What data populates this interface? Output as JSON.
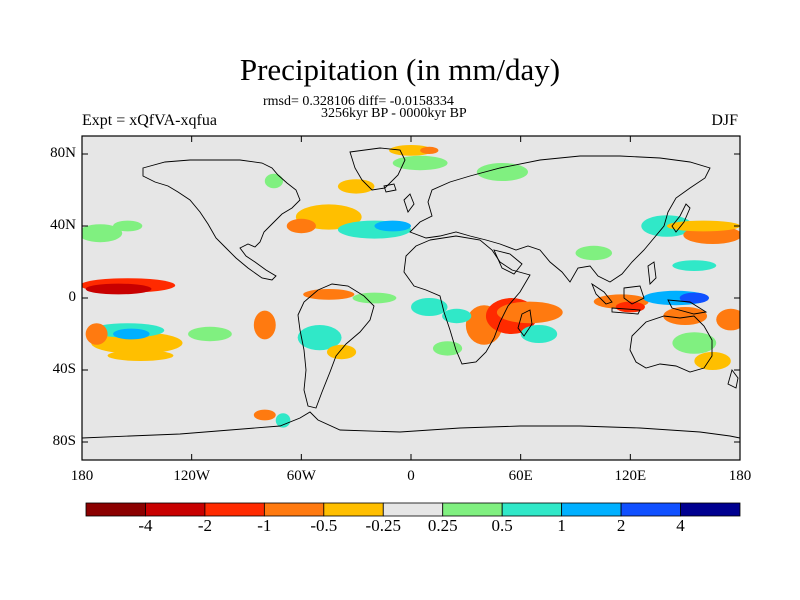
{
  "chart_data": {
    "type": "heatmap",
    "title": "Precipitation (in mm/day)",
    "stats": "rmsd= 0.328106 diff= -0.0158334",
    "period": "3256kyr BP - 0000kyr BP",
    "experiment": "Expt = xQfVA-xqfua",
    "season": "DJF",
    "lat_ticks": [
      {
        "value": 80,
        "label": "80N"
      },
      {
        "value": 40,
        "label": "40N"
      },
      {
        "value": 0,
        "label": "0"
      },
      {
        "value": -40,
        "label": "40S"
      },
      {
        "value": -80,
        "label": "80S"
      }
    ],
    "lon_ticks": [
      {
        "value": -180,
        "label": "180"
      },
      {
        "value": -120,
        "label": "120W"
      },
      {
        "value": -60,
        "label": "60W"
      },
      {
        "value": 0,
        "label": "0"
      },
      {
        "value": 60,
        "label": "60E"
      },
      {
        "value": 120,
        "label": "120E"
      },
      {
        "value": 180,
        "label": "180"
      }
    ],
    "xlim": [
      -180,
      180
    ],
    "ylim": [
      -90,
      90
    ],
    "colorbar": {
      "colors": [
        "#8b0000",
        "#c80000",
        "#ff2a00",
        "#ff7a10",
        "#ffbf00",
        "#e6e6e6",
        "#80f080",
        "#30e8c8",
        "#00b0ff",
        "#1050ff",
        "#000090"
      ],
      "labels": [
        "-4",
        "-2",
        "-1",
        "-0.5",
        "-0.25",
        "0.25",
        "0.5",
        "1",
        "2",
        "4"
      ]
    },
    "anomalies": [
      {
        "lon": -155,
        "lat": 7,
        "rx": 26,
        "ry": 4,
        "value": -1.5
      },
      {
        "lon": -160,
        "lat": 5,
        "rx": 18,
        "ry": 3,
        "value": -3
      },
      {
        "lon": -150,
        "lat": -25,
        "rx": 25,
        "ry": 6,
        "value": -0.4
      },
      {
        "lon": -155,
        "lat": -18,
        "rx": 20,
        "ry": 4,
        "value": 0.6
      },
      {
        "lon": -153,
        "lat": -20,
        "rx": 10,
        "ry": 3,
        "value": 1.5
      },
      {
        "lon": -172,
        "lat": -20,
        "rx": 6,
        "ry": 6,
        "value": -0.6
      },
      {
        "lon": -148,
        "lat": -32,
        "rx": 18,
        "ry": 3,
        "value": -0.3
      },
      {
        "lon": -110,
        "lat": -20,
        "rx": 12,
        "ry": 4,
        "value": 0.4
      },
      {
        "lon": -80,
        "lat": -15,
        "rx": 6,
        "ry": 8,
        "value": -0.6
      },
      {
        "lon": -50,
        "lat": -22,
        "rx": 12,
        "ry": 7,
        "value": 0.5
      },
      {
        "lon": -38,
        "lat": -30,
        "rx": 8,
        "ry": 4,
        "value": -0.4
      },
      {
        "lon": -45,
        "lat": 2,
        "rx": 14,
        "ry": 3,
        "value": -0.6
      },
      {
        "lon": -20,
        "lat": 0,
        "rx": 12,
        "ry": 3,
        "value": 0.3
      },
      {
        "lon": -45,
        "lat": 45,
        "rx": 18,
        "ry": 7,
        "value": -0.4
      },
      {
        "lon": -60,
        "lat": 40,
        "rx": 8,
        "ry": 4,
        "value": -0.8
      },
      {
        "lon": -20,
        "lat": 38,
        "rx": 20,
        "ry": 5,
        "value": 0.5
      },
      {
        "lon": -10,
        "lat": 40,
        "rx": 10,
        "ry": 3,
        "value": 1.2
      },
      {
        "lon": -30,
        "lat": 62,
        "rx": 10,
        "ry": 4,
        "value": -0.4
      },
      {
        "lon": 0,
        "lat": 82,
        "rx": 12,
        "ry": 3,
        "value": -0.5
      },
      {
        "lon": 5,
        "lat": 75,
        "rx": 15,
        "ry": 4,
        "value": 0.4
      },
      {
        "lon": 10,
        "lat": 82,
        "rx": 5,
        "ry": 2,
        "value": -0.8
      },
      {
        "lon": -170,
        "lat": 36,
        "rx": 12,
        "ry": 5,
        "value": 0.4
      },
      {
        "lon": -155,
        "lat": 40,
        "rx": 8,
        "ry": 3,
        "value": 0.3
      },
      {
        "lon": 50,
        "lat": 70,
        "rx": 14,
        "ry": 5,
        "value": 0.4
      },
      {
        "lon": -75,
        "lat": 65,
        "rx": 5,
        "ry": 4,
        "value": 0.4
      },
      {
        "lon": 40,
        "lat": -15,
        "rx": 10,
        "ry": 11,
        "value": -1
      },
      {
        "lon": 55,
        "lat": -10,
        "rx": 14,
        "ry": 10,
        "value": -1.6
      },
      {
        "lon": 65,
        "lat": -8,
        "rx": 18,
        "ry": 6,
        "value": -0.7
      },
      {
        "lon": 70,
        "lat": -20,
        "rx": 10,
        "ry": 5,
        "value": 0.5
      },
      {
        "lon": 25,
        "lat": -10,
        "rx": 8,
        "ry": 4,
        "value": 0.6
      },
      {
        "lon": 20,
        "lat": -28,
        "rx": 8,
        "ry": 4,
        "value": 0.4
      },
      {
        "lon": 10,
        "lat": -5,
        "rx": 10,
        "ry": 5,
        "value": 0.5
      },
      {
        "lon": 115,
        "lat": -2,
        "rx": 15,
        "ry": 4,
        "value": -0.6
      },
      {
        "lon": 120,
        "lat": -5,
        "rx": 8,
        "ry": 3,
        "value": -1.4
      },
      {
        "lon": 145,
        "lat": 0,
        "rx": 18,
        "ry": 4,
        "value": 1
      },
      {
        "lon": 155,
        "lat": 0,
        "rx": 8,
        "ry": 3,
        "value": 2.5
      },
      {
        "lon": 150,
        "lat": -10,
        "rx": 12,
        "ry": 5,
        "value": -0.6
      },
      {
        "lon": 175,
        "lat": -12,
        "rx": 8,
        "ry": 6,
        "value": -0.8
      },
      {
        "lon": 155,
        "lat": -25,
        "rx": 12,
        "ry": 6,
        "value": 0.4
      },
      {
        "lon": 165,
        "lat": -35,
        "rx": 10,
        "ry": 5,
        "value": -0.4
      },
      {
        "lon": 140,
        "lat": 40,
        "rx": 14,
        "ry": 6,
        "value": 0.5
      },
      {
        "lon": 165,
        "lat": 35,
        "rx": 16,
        "ry": 5,
        "value": -0.6
      },
      {
        "lon": 160,
        "lat": 40,
        "rx": 20,
        "ry": 3,
        "value": -0.3
      },
      {
        "lon": 155,
        "lat": 18,
        "rx": 12,
        "ry": 3,
        "value": 0.5
      },
      {
        "lon": -80,
        "lat": -65,
        "rx": 6,
        "ry": 3,
        "value": -0.6
      },
      {
        "lon": -70,
        "lat": -68,
        "rx": 4,
        "ry": 4,
        "value": 0.6
      },
      {
        "lon": 100,
        "lat": 25,
        "rx": 10,
        "ry": 4,
        "value": 0.3
      }
    ]
  }
}
